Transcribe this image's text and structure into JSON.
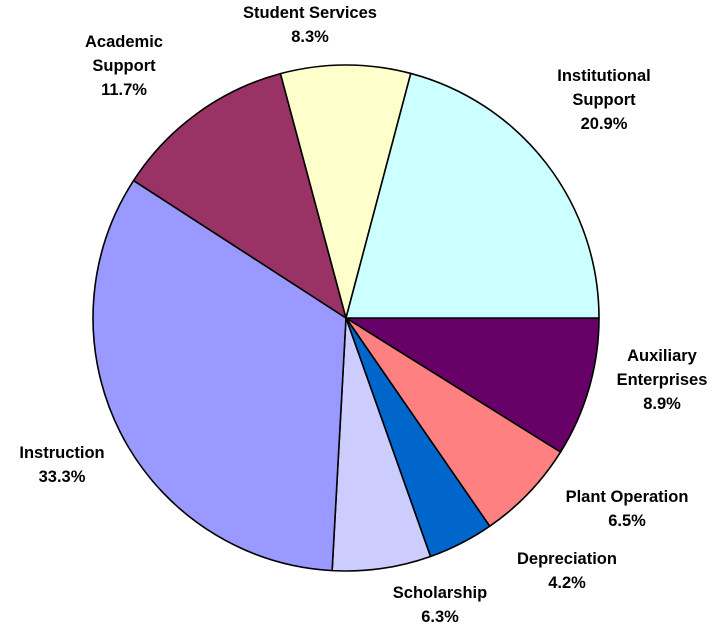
{
  "chart_data": {
    "type": "pie",
    "title": "",
    "start_angle_deg": 0,
    "direction": "clockwise",
    "slices": [
      {
        "name": "Auxiliary",
        "name_lines": [
          "Auxiliary",
          "Enterprises"
        ],
        "value": 8.9,
        "label": "8.9%",
        "color": "#660066"
      },
      {
        "name": "Plant Operation",
        "name_lines": [
          "Plant Operation"
        ],
        "value": 6.5,
        "label": "6.5%",
        "color": "#FF8080"
      },
      {
        "name": "Depreciation",
        "name_lines": [
          "Depreciation"
        ],
        "value": 4.2,
        "label": "4.2%",
        "color": "#0066CC"
      },
      {
        "name": "Scholarship",
        "name_lines": [
          "Scholarship"
        ],
        "value": 6.3,
        "label": "6.3%",
        "color": "#CCCCFF"
      },
      {
        "name": "Instruction",
        "name_lines": [
          "Instruction"
        ],
        "value": 33.3,
        "label": "33.3%",
        "color": "#9999FF"
      },
      {
        "name": "Academic Support",
        "name_lines": [
          "Academic",
          "Support"
        ],
        "value": 11.7,
        "label": "11.7%",
        "color": "#993366"
      },
      {
        "name": "Student Services",
        "name_lines": [
          "Student Services"
        ],
        "value": 8.3,
        "label": "8.3%",
        "color": "#FFFFCC"
      },
      {
        "name": "Institutional Support",
        "name_lines": [
          "Institutional",
          "Support"
        ],
        "value": 20.9,
        "label": "20.9%",
        "color": "#CCFFFF"
      }
    ]
  }
}
